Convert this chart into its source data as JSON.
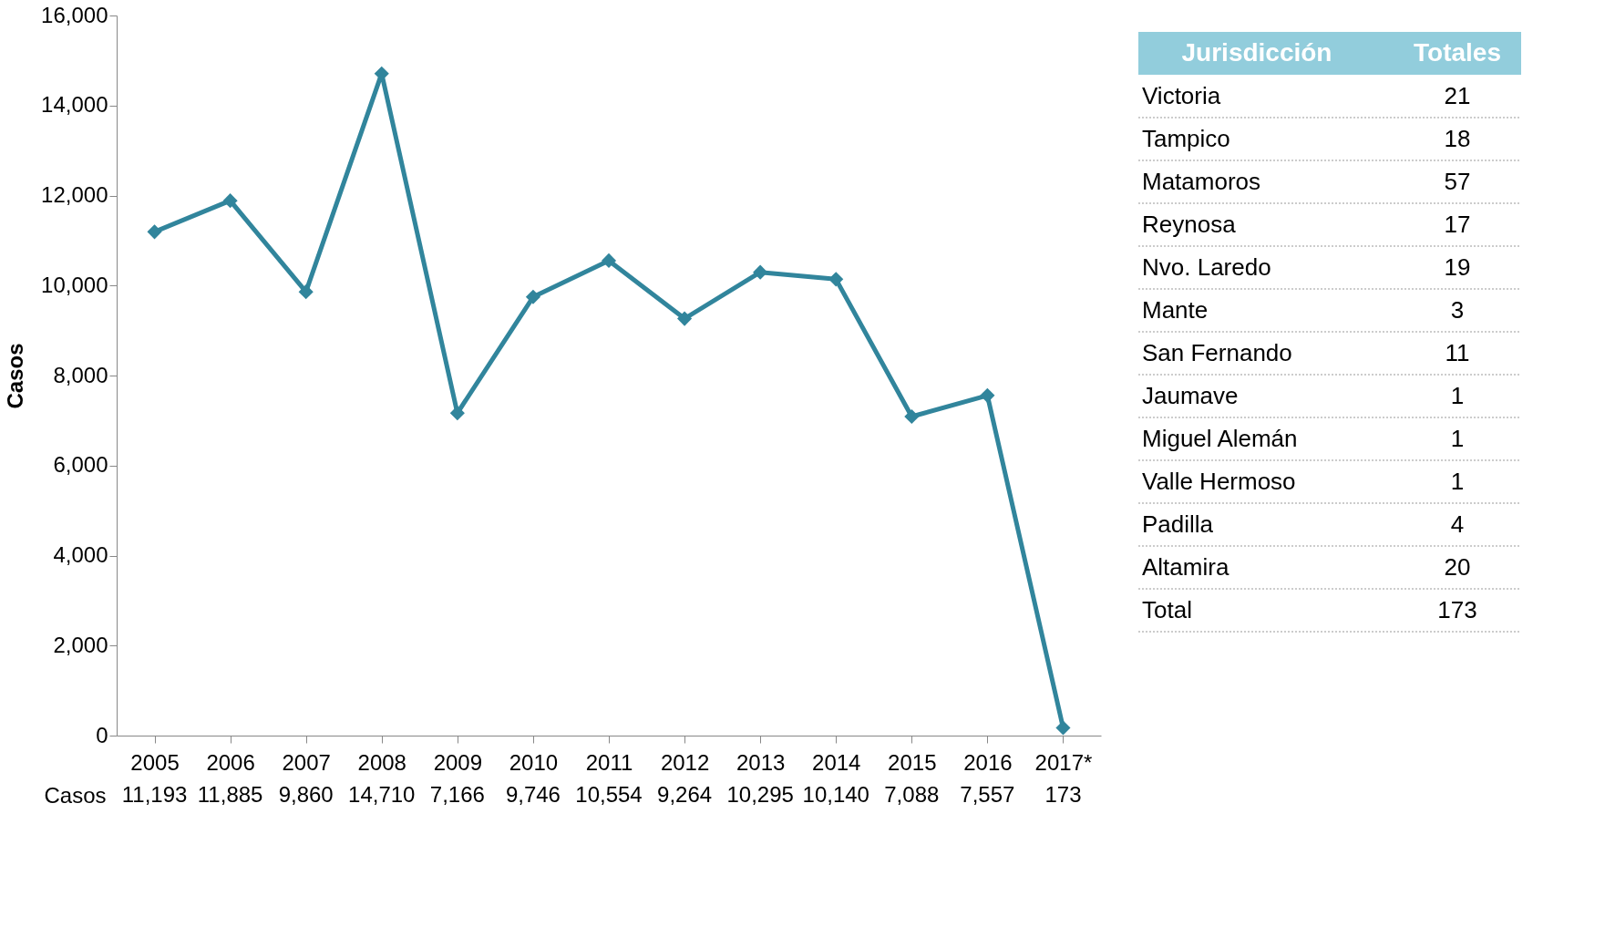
{
  "chart_data": [
    {
      "type": "line",
      "ylabel": "Casos",
      "categories": [
        "2005",
        "2006",
        "2007",
        "2008",
        "2009",
        "2010",
        "2011",
        "2012",
        "2013",
        "2014",
        "2015",
        "2016",
        "2017*"
      ],
      "series": [
        {
          "color": "#31859c",
          "values": [
            11193,
            11885,
            9860,
            14710,
            7166,
            9746,
            10554,
            9264,
            10295,
            10140,
            7088,
            7557,
            173
          ]
        }
      ],
      "ylim": [
        0,
        16000
      ],
      "yticks": [
        {
          "value": 0,
          "label": "0"
        },
        {
          "value": 2000,
          "label": "2,000"
        },
        {
          "value": 4000,
          "label": "4,000"
        },
        {
          "value": 6000,
          "label": "6,000"
        },
        {
          "value": 8000,
          "label": "8,000"
        },
        {
          "value": 10000,
          "label": "10,000"
        },
        {
          "value": 12000,
          "label": "12,000"
        },
        {
          "value": 14000,
          "label": "14,000"
        },
        {
          "value": 16000,
          "label": "16,000"
        }
      ],
      "marker": "diamond",
      "grid": false,
      "legend": false,
      "value_labels": [
        "11,193",
        "11,885",
        "9,860",
        "14,710",
        "7,166",
        "9,746",
        "10,554",
        "9,264",
        "10,295",
        "10,140",
        "7,088",
        "7,557",
        "173"
      ]
    },
    {
      "type": "other",
      "xlabel": "Jurisdicción",
      "ylabel": "Totales",
      "categories": [
        "Victoria",
        "Tampico",
        "Matamoros",
        "Reynosa",
        "Nvo. Laredo",
        "Mante",
        "San Fernando",
        "Jaumave",
        "Miguel Alemán",
        "Valle Hermoso",
        "Padilla",
        "Altamira",
        "Total"
      ],
      "values": [
        21,
        18,
        57,
        17,
        19,
        3,
        11,
        1,
        1,
        1,
        4,
        20,
        173
      ],
      "data_labels": true
    }
  ]
}
